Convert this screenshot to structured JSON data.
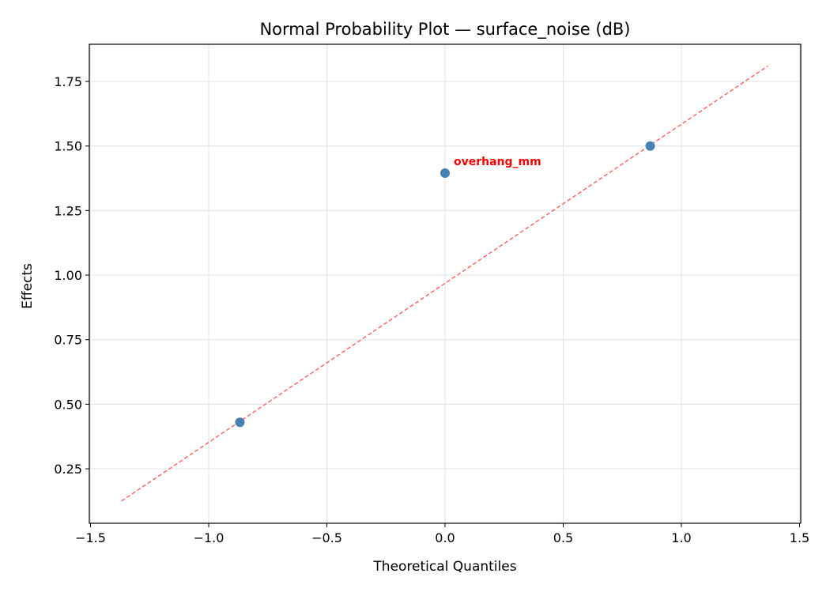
{
  "chart_data": {
    "type": "scatter",
    "title": "Normal Probability Plot — surface_noise (dB)",
    "xlabel": "Theoretical Quantiles",
    "ylabel": "Effects",
    "xlim": [
      -1.505,
      1.505
    ],
    "ylim": [
      0.039,
      1.894
    ],
    "xticks": [
      -1.5,
      -1.0,
      -0.5,
      0.0,
      0.5,
      1.0,
      1.5
    ],
    "xtick_labels": [
      "−1.5",
      "−1.0",
      "−0.5",
      "0.0",
      "0.5",
      "1.0",
      "1.5"
    ],
    "yticks": [
      0.25,
      0.5,
      0.75,
      1.0,
      1.25,
      1.5,
      1.75
    ],
    "ytick_labels": [
      "0.25",
      "0.50",
      "0.75",
      "1.00",
      "1.25",
      "1.50",
      "1.75"
    ],
    "grid": true,
    "points": [
      {
        "x": -0.868,
        "y": 0.43,
        "label": ""
      },
      {
        "x": 0.0,
        "y": 1.395,
        "label": "overhang_mm"
      },
      {
        "x": 0.868,
        "y": 1.5,
        "label": ""
      }
    ],
    "reference_line": {
      "x": [
        -1.369,
        1.366
      ],
      "y": [
        0.125,
        1.81
      ],
      "style": "dashed"
    },
    "colors": {
      "points": "#4682b4",
      "line": "#ff6666",
      "annotation": "#ff0000",
      "grid": "#e6e6e6"
    }
  }
}
